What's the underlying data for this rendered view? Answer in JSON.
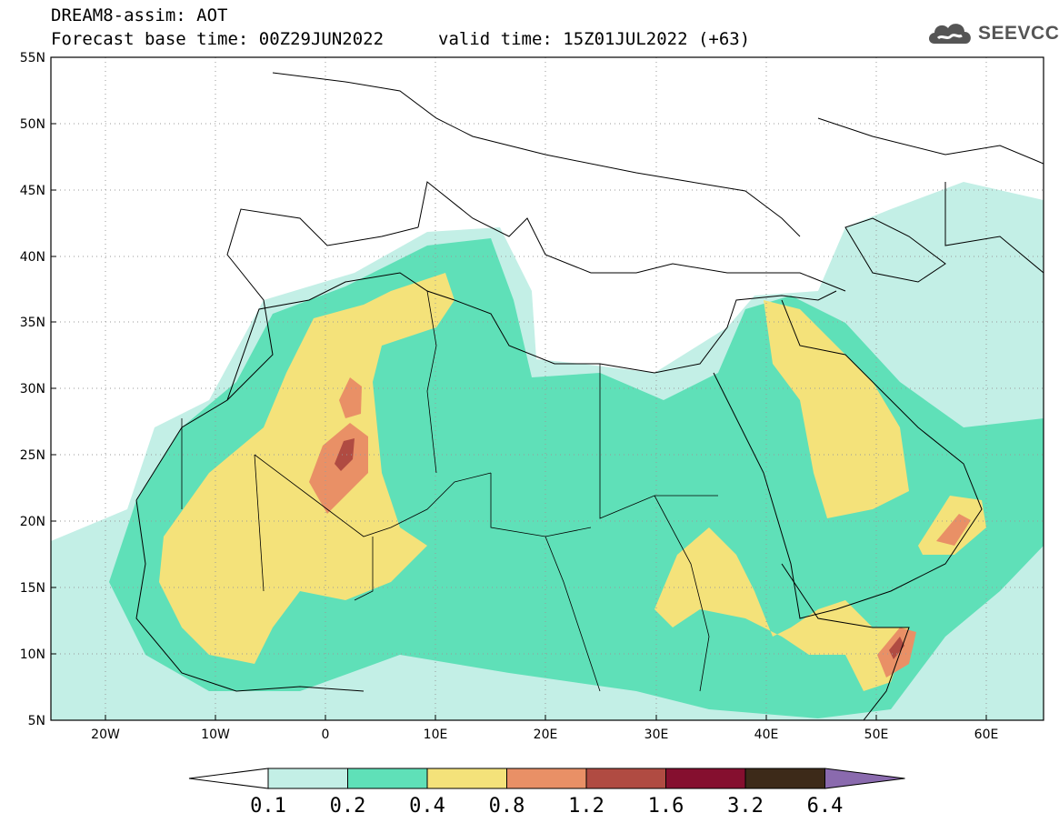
{
  "header": {
    "model_title": "DREAM8-assim: AOT",
    "base_time": "Forecast base time: 00Z29JUN2022",
    "valid_time": "valid time: 15Z01JUL2022 (+63)"
  },
  "logo": {
    "text": "SEEVCCC",
    "icon": "cloud-icon"
  },
  "map": {
    "lon_range": [
      -25,
      65
    ],
    "lat_range": [
      5,
      55
    ],
    "lat_ticks": [
      "5N",
      "10N",
      "15N",
      "20N",
      "25N",
      "30N",
      "35N",
      "40N",
      "45N",
      "50N",
      "55N"
    ],
    "lon_ticks": [
      "20W",
      "10W",
      "0",
      "10E",
      "20E",
      "30E",
      "40E",
      "50E",
      "60E"
    ],
    "fill_colors": {
      "light": "#c3efe6",
      "mid": "#5fe0b8",
      "high": "#f4e27a",
      "higher": "#e99066",
      "peak": "#b04b42",
      "land_border": "#000000"
    }
  },
  "colorbar": {
    "labels": [
      "0.1",
      "0.2",
      "0.4",
      "0.8",
      "1.2",
      "1.6",
      "3.2",
      "6.4"
    ],
    "colors": [
      "#ffffff",
      "#c3efe6",
      "#5fe0b8",
      "#f4e27a",
      "#e99066",
      "#b04b42",
      "#850f2f",
      "#3d2a19",
      "#8a6aae"
    ]
  }
}
